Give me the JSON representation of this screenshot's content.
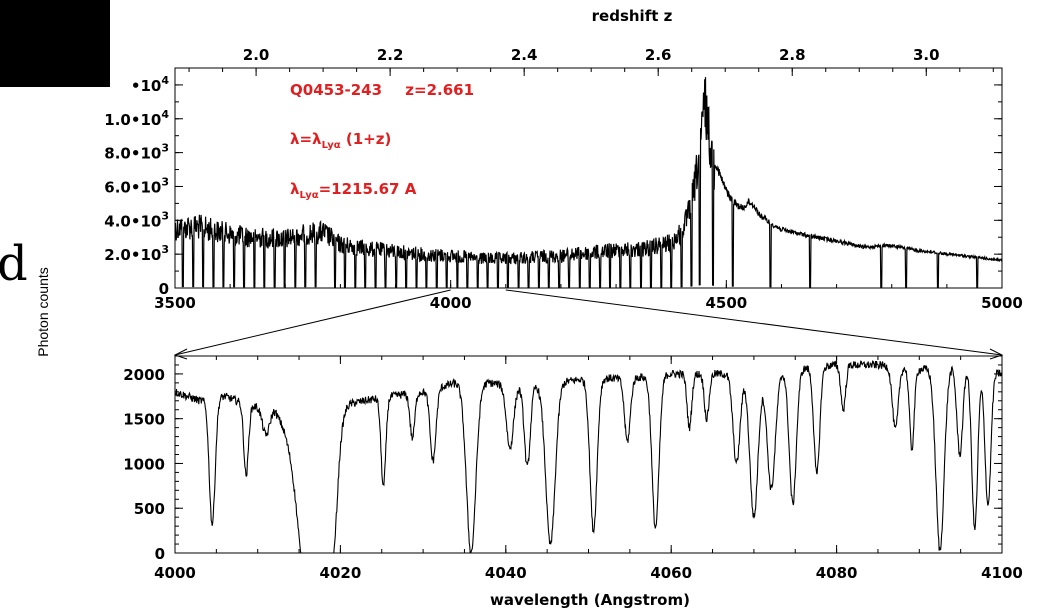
{
  "side": {
    "ylabel": "Photon counts",
    "glyph": "d"
  },
  "annotations": {
    "quasar": "Q0453-243",
    "redshift": "z=2.661",
    "formula": "λ=λ",
    "formula_sub": "Lyα",
    "formula_tail": " (1+z)",
    "rest_lambda": "λ",
    "rest_sub": "Lyα",
    "rest_value": "=1215.67 A"
  },
  "colors": {
    "line": "#000000",
    "annotation": "#e02020",
    "redaction": "#000000"
  },
  "chart_data": [
    {
      "type": "line",
      "name": "top-panel",
      "xlabel": "",
      "x2label": "redshift  z",
      "ylabel": "",
      "xlim": [
        3500,
        5000
      ],
      "ylim": [
        0,
        13000
      ],
      "x2lim": [
        1.879,
        3.113
      ],
      "x_ticks": [
        {
          "value": 3500,
          "label": "3500"
        },
        {
          "value": 4000,
          "label": "4000"
        },
        {
          "value": 4500,
          "label": "4500"
        },
        {
          "value": 5000,
          "label": "5000"
        }
      ],
      "x2_ticks": [
        {
          "value": 2.0,
          "label": "2.0"
        },
        {
          "value": 2.2,
          "label": "2.2"
        },
        {
          "value": 2.4,
          "label": "2.4"
        },
        {
          "value": 2.6,
          "label": "2.6"
        },
        {
          "value": 2.8,
          "label": "2.8"
        },
        {
          "value": 3.0,
          "label": "3.0"
        }
      ],
      "y_ticks": [
        {
          "value": 0,
          "label": "0",
          "exp": ""
        },
        {
          "value": 2000,
          "label": "2.0•10",
          "exp": "3"
        },
        {
          "value": 4000,
          "label": "4.0•10",
          "exp": "3"
        },
        {
          "value": 6000,
          "label": "6.0•10",
          "exp": "3"
        },
        {
          "value": 8000,
          "label": "8.0•10",
          "exp": "3"
        },
        {
          "value": 10000,
          "label": "1.0•10",
          "exp": "4"
        },
        {
          "value": 12000,
          "label": "•10",
          "exp": "4"
        }
      ],
      "continuum": [
        [
          3500,
          4300
        ],
        [
          3540,
          4400
        ],
        [
          3580,
          4000
        ],
        [
          3620,
          3700
        ],
        [
          3660,
          3600
        ],
        [
          3700,
          3500
        ],
        [
          3740,
          3900
        ],
        [
          3770,
          3950
        ],
        [
          3800,
          3100
        ],
        [
          3850,
          2800
        ],
        [
          3900,
          2600
        ],
        [
          3950,
          2400
        ],
        [
          4000,
          2300
        ],
        [
          4050,
          2100
        ],
        [
          4100,
          2100
        ],
        [
          4150,
          2200
        ],
        [
          4200,
          2300
        ],
        [
          4250,
          2500
        ],
        [
          4300,
          2700
        ],
        [
          4350,
          2800
        ],
        [
          4400,
          3200
        ],
        [
          4420,
          4000
        ],
        [
          4430,
          5000
        ],
        [
          4440,
          6500
        ],
        [
          4450,
          9000
        ],
        [
          4455,
          10500
        ],
        [
          4460,
          13000
        ],
        [
          4465,
          12200
        ],
        [
          4470,
          10000
        ],
        [
          4480,
          7800
        ],
        [
          4490,
          6800
        ],
        [
          4500,
          6000
        ],
        [
          4510,
          5400
        ],
        [
          4520,
          5100
        ],
        [
          4530,
          4900
        ],
        [
          4540,
          5300
        ],
        [
          4550,
          5100
        ],
        [
          4560,
          4500
        ],
        [
          4580,
          4000
        ],
        [
          4600,
          3600
        ],
        [
          4650,
          3200
        ],
        [
          4700,
          2900
        ],
        [
          4750,
          2500
        ],
        [
          4780,
          2600
        ],
        [
          4800,
          2600
        ],
        [
          4850,
          2300
        ],
        [
          4900,
          2100
        ],
        [
          4950,
          1900
        ],
        [
          5000,
          1700
        ]
      ],
      "absorption_dips": [
        3514,
        3533,
        3551,
        3570,
        3588,
        3607,
        3625,
        3644,
        3662,
        3681,
        3699,
        3718,
        3736,
        3755,
        3790,
        3808,
        3827,
        3845,
        3864,
        3882,
        3901,
        3919,
        3938,
        3956,
        3975,
        3993,
        4012,
        4030,
        4049,
        4067,
        4086,
        4104,
        4123,
        4141,
        4160,
        4178,
        4197,
        4215,
        4234,
        4252,
        4271,
        4289,
        4308,
        4326,
        4345,
        4363,
        4382,
        4400,
        4419,
        4437,
        4452,
        4476,
        4512,
        4580,
        4652,
        4781,
        4826,
        4884,
        4955
      ]
    },
    {
      "type": "line",
      "name": "bottom-panel",
      "xlabel": "wavelength (Angstrom)",
      "ylabel": "",
      "xlim": [
        4000,
        4100
      ],
      "ylim": [
        0,
        2200
      ],
      "x_ticks": [
        {
          "value": 4000,
          "label": "4000"
        },
        {
          "value": 4020,
          "label": "4020"
        },
        {
          "value": 4040,
          "label": "4040"
        },
        {
          "value": 4060,
          "label": "4060"
        },
        {
          "value": 4080,
          "label": "4080"
        },
        {
          "value": 4100,
          "label": "4100"
        }
      ],
      "y_ticks": [
        {
          "value": 0,
          "label": "0"
        },
        {
          "value": 500,
          "label": "500"
        },
        {
          "value": 1000,
          "label": "1000"
        },
        {
          "value": 1500,
          "label": "1500"
        },
        {
          "value": 2000,
          "label": "2000"
        }
      ],
      "continuum": [
        [
          4000,
          1800
        ],
        [
          4003,
          1700
        ],
        [
          4006,
          1750
        ],
        [
          4009,
          1650
        ],
        [
          4012,
          1600
        ],
        [
          4014,
          1300
        ],
        [
          4016,
          900
        ],
        [
          4018,
          1200
        ],
        [
          4020,
          1650
        ],
        [
          4023,
          1700
        ],
        [
          4026,
          1750
        ],
        [
          4030,
          1800
        ],
        [
          4034,
          1900
        ],
        [
          4038,
          1900
        ],
        [
          4042,
          1850
        ],
        [
          4046,
          1900
        ],
        [
          4050,
          1950
        ],
        [
          4055,
          1950
        ],
        [
          4060,
          2000
        ],
        [
          4065,
          2000
        ],
        [
          4070,
          2000
        ],
        [
          4075,
          2050
        ],
        [
          4080,
          2100
        ],
        [
          4085,
          2100
        ],
        [
          4090,
          2050
        ],
        [
          4095,
          2100
        ],
        [
          4100,
          2000
        ]
      ],
      "absorption_lines": [
        {
          "x": 4004.5,
          "depth": 1400,
          "width": 0.5
        },
        {
          "x": 4008.6,
          "depth": 800,
          "width": 0.4
        },
        {
          "x": 4011.0,
          "depth": 300,
          "width": 0.6
        },
        {
          "x": 4016.4,
          "depth": 1700,
          "width": 1.8
        },
        {
          "x": 4018.9,
          "depth": 1500,
          "width": 1.0
        },
        {
          "x": 4025.2,
          "depth": 1000,
          "width": 0.4
        },
        {
          "x": 4028.7,
          "depth": 500,
          "width": 0.4
        },
        {
          "x": 4031.2,
          "depth": 800,
          "width": 0.5
        },
        {
          "x": 4035.8,
          "depth": 1900,
          "width": 0.8
        },
        {
          "x": 4040.5,
          "depth": 700,
          "width": 0.6
        },
        {
          "x": 4042.6,
          "depth": 900,
          "width": 0.5
        },
        {
          "x": 4045.4,
          "depth": 1800,
          "width": 0.8
        },
        {
          "x": 4050.6,
          "depth": 1700,
          "width": 0.6
        },
        {
          "x": 4054.7,
          "depth": 700,
          "width": 0.5
        },
        {
          "x": 4058.1,
          "depth": 1700,
          "width": 0.6
        },
        {
          "x": 4062.2,
          "depth": 600,
          "width": 0.4
        },
        {
          "x": 4064.3,
          "depth": 500,
          "width": 0.4
        },
        {
          "x": 4067.9,
          "depth": 1000,
          "width": 0.6
        },
        {
          "x": 4070.0,
          "depth": 1600,
          "width": 0.7
        },
        {
          "x": 4072.1,
          "depth": 1300,
          "width": 0.7
        },
        {
          "x": 4074.7,
          "depth": 1500,
          "width": 0.6
        },
        {
          "x": 4077.6,
          "depth": 1200,
          "width": 0.5
        },
        {
          "x": 4080.8,
          "depth": 500,
          "width": 0.4
        },
        {
          "x": 4087.1,
          "depth": 700,
          "width": 0.5
        },
        {
          "x": 4089.1,
          "depth": 900,
          "width": 0.4
        },
        {
          "x": 4092.5,
          "depth": 2050,
          "width": 0.7
        },
        {
          "x": 4094.9,
          "depth": 1000,
          "width": 0.5
        },
        {
          "x": 4096.7,
          "depth": 1800,
          "width": 0.5
        },
        {
          "x": 4098.3,
          "depth": 1500,
          "width": 0.5
        }
      ]
    }
  ]
}
